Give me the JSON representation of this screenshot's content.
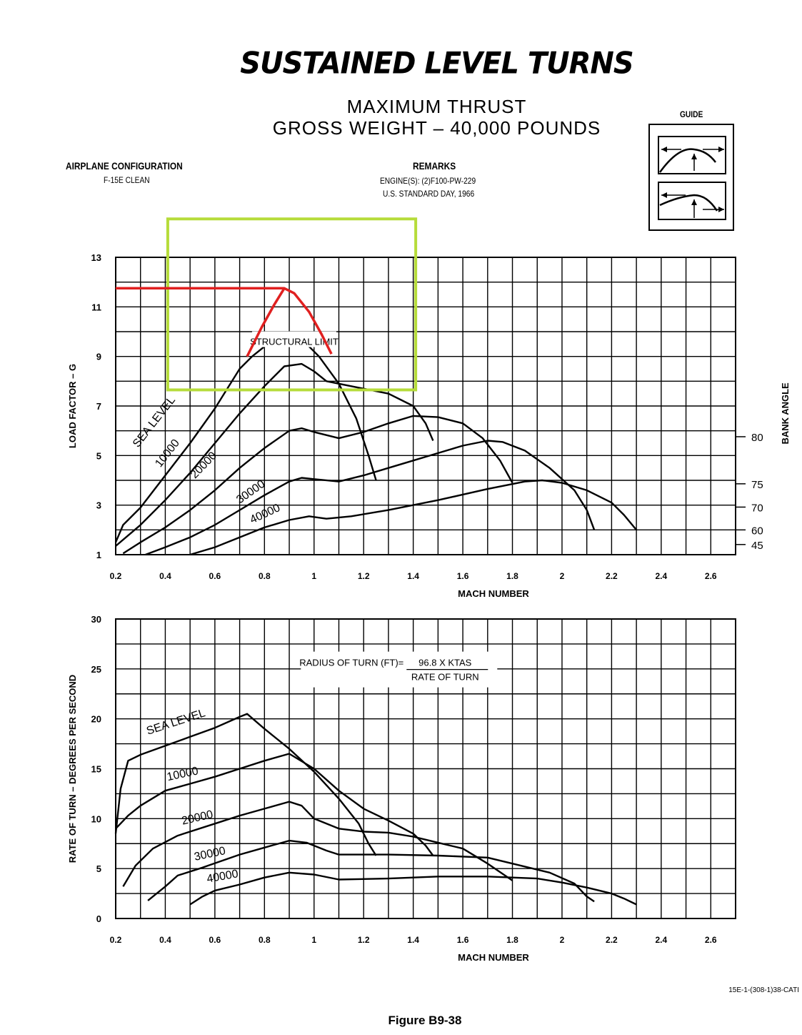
{
  "header": {
    "title": "SUSTAINED LEVEL TURNS",
    "subtitle_1": "MAXIMUM THRUST",
    "subtitle_2": "GROSS WEIGHT – 40,000 POUNDS",
    "guide_label": "GUIDE",
    "config_label": "AIRPLANE CONFIGURATION",
    "config_value": "F-15E CLEAN",
    "remarks_label": "REMARKS",
    "remarks_line_1": "ENGINE(S): (2)F100-PW-229",
    "remarks_line_2": "U.S. STANDARD DAY, 1966"
  },
  "footer": {
    "code": "15E-1-(308-1)38-CATI",
    "figure": "Figure B9-38"
  },
  "colors": {
    "highlight_red": "#e02020",
    "highlight_box": "#b6dc3a",
    "ink": "#000000"
  },
  "chart_data": [
    {
      "type": "line",
      "xlabel": "MACH NUMBER",
      "ylabel": "LOAD FACTOR – G",
      "y2label": "BANK ANGLE",
      "xlim": [
        0.2,
        2.7
      ],
      "ylim": [
        1,
        13
      ],
      "xticks": [
        "0.2",
        "0.4",
        "0.6",
        "0.8",
        "1",
        "1.2",
        "1.4",
        "1.6",
        "1.8",
        "2",
        "2.2",
        "2.4",
        "2.6"
      ],
      "yticks": [
        "1",
        "3",
        "5",
        "7",
        "9",
        "11",
        "13"
      ],
      "bank_angle_ticks": [
        {
          "label": "80",
          "g": 5.76
        },
        {
          "label": "75",
          "g": 3.86
        },
        {
          "label": "70",
          "g": 2.92
        },
        {
          "label": "60",
          "g": 2.0
        },
        {
          "label": "45",
          "g": 1.41
        }
      ],
      "grid": true,
      "annotations": [
        "STRUCTURAL LIMIT"
      ],
      "series": [
        {
          "name": "SEA LEVEL",
          "points": [
            [
              0.2,
              1.5
            ],
            [
              0.23,
              2.2
            ],
            [
              0.3,
              2.9
            ],
            [
              0.4,
              4.2
            ],
            [
              0.5,
              5.5
            ],
            [
              0.6,
              6.9
            ],
            [
              0.7,
              8.5
            ],
            [
              0.75,
              9.0
            ],
            [
              0.8,
              9.4
            ],
            [
              0.88,
              9.9
            ],
            [
              0.95,
              9.7
            ],
            [
              1.02,
              9.0
            ],
            [
              1.1,
              7.9
            ],
            [
              1.17,
              6.5
            ],
            [
              1.22,
              5.0
            ],
            [
              1.25,
              4.0
            ]
          ]
        },
        {
          "name": "10000",
          "points": [
            [
              0.2,
              1.35
            ],
            [
              0.3,
              2.2
            ],
            [
              0.4,
              3.2
            ],
            [
              0.5,
              4.3
            ],
            [
              0.6,
              5.5
            ],
            [
              0.7,
              6.7
            ],
            [
              0.8,
              7.8
            ],
            [
              0.88,
              8.6
            ],
            [
              0.95,
              8.7
            ],
            [
              1.0,
              8.4
            ],
            [
              1.05,
              8.0
            ],
            [
              1.15,
              7.8
            ],
            [
              1.3,
              7.5
            ],
            [
              1.4,
              7.0
            ],
            [
              1.45,
              6.3
            ],
            [
              1.48,
              5.6
            ]
          ]
        },
        {
          "name": "20000",
          "points": [
            [
              0.23,
              1.05
            ],
            [
              0.3,
              1.5
            ],
            [
              0.4,
              2.1
            ],
            [
              0.5,
              2.8
            ],
            [
              0.6,
              3.6
            ],
            [
              0.7,
              4.5
            ],
            [
              0.8,
              5.3
            ],
            [
              0.9,
              6.0
            ],
            [
              0.95,
              6.1
            ],
            [
              1.0,
              5.95
            ],
            [
              1.1,
              5.7
            ],
            [
              1.2,
              5.95
            ],
            [
              1.3,
              6.3
            ],
            [
              1.4,
              6.6
            ],
            [
              1.5,
              6.55
            ],
            [
              1.6,
              6.3
            ],
            [
              1.68,
              5.7
            ],
            [
              1.75,
              4.8
            ],
            [
              1.8,
              3.9
            ]
          ]
        },
        {
          "name": "30000",
          "points": [
            [
              0.32,
              1.0
            ],
            [
              0.4,
              1.3
            ],
            [
              0.5,
              1.7
            ],
            [
              0.6,
              2.2
            ],
            [
              0.7,
              2.8
            ],
            [
              0.8,
              3.4
            ],
            [
              0.9,
              3.95
            ],
            [
              0.95,
              4.1
            ],
            [
              1.0,
              4.05
            ],
            [
              1.1,
              3.95
            ],
            [
              1.2,
              4.2
            ],
            [
              1.3,
              4.5
            ],
            [
              1.4,
              4.8
            ],
            [
              1.5,
              5.1
            ],
            [
              1.6,
              5.4
            ],
            [
              1.7,
              5.6
            ],
            [
              1.76,
              5.55
            ],
            [
              1.85,
              5.2
            ],
            [
              1.95,
              4.5
            ],
            [
              2.05,
              3.6
            ],
            [
              2.1,
              2.8
            ],
            [
              2.13,
              2.0
            ]
          ]
        },
        {
          "name": "40000",
          "points": [
            [
              0.5,
              1.0
            ],
            [
              0.6,
              1.3
            ],
            [
              0.7,
              1.7
            ],
            [
              0.8,
              2.1
            ],
            [
              0.9,
              2.4
            ],
            [
              0.98,
              2.55
            ],
            [
              1.05,
              2.45
            ],
            [
              1.15,
              2.55
            ],
            [
              1.3,
              2.8
            ],
            [
              1.5,
              3.2
            ],
            [
              1.7,
              3.65
            ],
            [
              1.85,
              3.95
            ],
            [
              1.92,
              4.0
            ],
            [
              2.0,
              3.9
            ],
            [
              2.1,
              3.6
            ],
            [
              2.2,
              3.1
            ],
            [
              2.25,
              2.6
            ],
            [
              2.3,
              2.0
            ]
          ]
        }
      ],
      "highlight_line": {
        "points": [
          [
            0.2,
            11.75
          ],
          [
            0.88,
            11.75
          ],
          [
            0.92,
            11.55
          ],
          [
            0.98,
            10.8
          ],
          [
            1.03,
            9.9
          ],
          [
            1.07,
            9.1
          ]
        ]
      },
      "highlight_line_left": {
        "points": [
          [
            0.73,
            9.0
          ],
          [
            0.79,
            10.2
          ],
          [
            0.84,
            11.1
          ],
          [
            0.88,
            11.75
          ]
        ]
      },
      "highlight_box": {
        "x": [
          0.41,
          1.41
        ],
        "y": [
          7.65,
          14.55
        ]
      }
    },
    {
      "type": "line",
      "xlabel": "MACH NUMBER",
      "ylabel": "RATE OF TURN – DEGREES PER SECOND",
      "xlim": [
        0.2,
        2.7
      ],
      "ylim": [
        0,
        30
      ],
      "xticks": [
        "0.2",
        "0.4",
        "0.6",
        "0.8",
        "1",
        "1.2",
        "1.4",
        "1.6",
        "1.8",
        "2",
        "2.2",
        "2.4",
        "2.6"
      ],
      "yticks": [
        "0",
        "5",
        "10",
        "15",
        "20",
        "25",
        "30"
      ],
      "grid": true,
      "formula_left": "RADIUS OF TURN (FT)=",
      "formula_numerator": "96.8 X KTAS",
      "formula_denominator": "RATE OF TURN",
      "series": [
        {
          "name": "SEA LEVEL",
          "points": [
            [
              0.2,
              8.5
            ],
            [
              0.22,
              13.0
            ],
            [
              0.25,
              15.8
            ],
            [
              0.3,
              16.4
            ],
            [
              0.4,
              17.3
            ],
            [
              0.5,
              18.2
            ],
            [
              0.6,
              19.1
            ],
            [
              0.7,
              20.2
            ],
            [
              0.73,
              20.5
            ],
            [
              0.8,
              19.0
            ],
            [
              0.9,
              17.0
            ],
            [
              1.0,
              14.7
            ],
            [
              1.1,
              12.0
            ],
            [
              1.18,
              9.5
            ],
            [
              1.22,
              7.5
            ],
            [
              1.25,
              6.3
            ]
          ]
        },
        {
          "name": "10000",
          "points": [
            [
              0.2,
              9.0
            ],
            [
              0.25,
              10.3
            ],
            [
              0.3,
              11.3
            ],
            [
              0.4,
              12.8
            ],
            [
              0.5,
              13.5
            ],
            [
              0.6,
              14.2
            ],
            [
              0.7,
              15.0
            ],
            [
              0.8,
              15.8
            ],
            [
              0.9,
              16.5
            ],
            [
              1.0,
              15.0
            ],
            [
              1.1,
              12.8
            ],
            [
              1.2,
              11.0
            ],
            [
              1.3,
              9.8
            ],
            [
              1.4,
              8.5
            ],
            [
              1.45,
              7.3
            ],
            [
              1.48,
              6.3
            ]
          ]
        },
        {
          "name": "20000",
          "points": [
            [
              0.23,
              3.2
            ],
            [
              0.28,
              5.3
            ],
            [
              0.35,
              7.0
            ],
            [
              0.45,
              8.3
            ],
            [
              0.6,
              9.5
            ],
            [
              0.7,
              10.3
            ],
            [
              0.8,
              11.0
            ],
            [
              0.9,
              11.7
            ],
            [
              0.95,
              11.3
            ],
            [
              1.0,
              10.0
            ],
            [
              1.1,
              9.0
            ],
            [
              1.2,
              8.7
            ],
            [
              1.3,
              8.6
            ],
            [
              1.4,
              8.2
            ],
            [
              1.5,
              7.6
            ],
            [
              1.6,
              7.0
            ],
            [
              1.7,
              5.5
            ],
            [
              1.8,
              3.8
            ]
          ]
        },
        {
          "name": "30000",
          "points": [
            [
              0.33,
              1.8
            ],
            [
              0.4,
              3.2
            ],
            [
              0.45,
              4.3
            ],
            [
              0.55,
              5.1
            ],
            [
              0.7,
              6.4
            ],
            [
              0.8,
              7.1
            ],
            [
              0.9,
              7.8
            ],
            [
              0.97,
              7.6
            ],
            [
              1.05,
              6.8
            ],
            [
              1.1,
              6.4
            ],
            [
              1.3,
              6.4
            ],
            [
              1.5,
              6.3
            ],
            [
              1.7,
              6.1
            ],
            [
              1.8,
              5.5
            ],
            [
              1.95,
              4.6
            ],
            [
              2.05,
              3.5
            ],
            [
              2.1,
              2.2
            ],
            [
              2.13,
              1.7
            ]
          ]
        },
        {
          "name": "40000",
          "points": [
            [
              0.5,
              1.4
            ],
            [
              0.55,
              2.2
            ],
            [
              0.6,
              2.8
            ],
            [
              0.7,
              3.4
            ],
            [
              0.8,
              4.1
            ],
            [
              0.9,
              4.6
            ],
            [
              1.0,
              4.4
            ],
            [
              1.1,
              3.9
            ],
            [
              1.3,
              4.0
            ],
            [
              1.5,
              4.2
            ],
            [
              1.7,
              4.2
            ],
            [
              1.9,
              4.0
            ],
            [
              2.0,
              3.6
            ],
            [
              2.1,
              3.1
            ],
            [
              2.2,
              2.5
            ],
            [
              2.25,
              2.0
            ],
            [
              2.3,
              1.4
            ]
          ]
        }
      ]
    }
  ]
}
